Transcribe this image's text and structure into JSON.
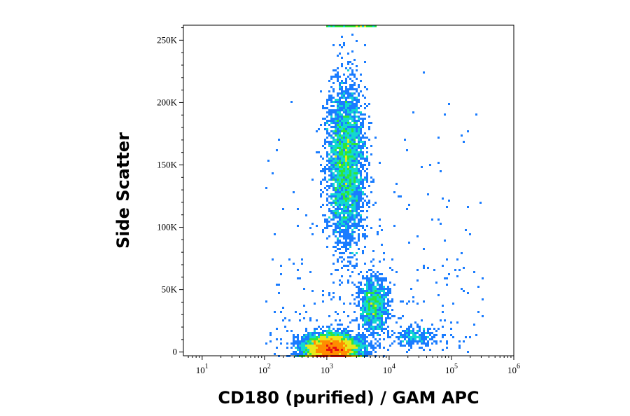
{
  "chart_data": {
    "type": "scatter",
    "subtype": "flow-cytometry-density-dot-plot",
    "xlabel": "CD180 (purified) / GAM APC",
    "ylabel": "Side Scatter",
    "x_scale": "log",
    "xlim": [
      5,
      1000000
    ],
    "ylim": [
      -3000,
      262000
    ],
    "x_ticks": [
      {
        "value": 10,
        "base": "10",
        "exp": "1"
      },
      {
        "value": 100,
        "base": "10",
        "exp": "2"
      },
      {
        "value": 1000,
        "base": "10",
        "exp": "3"
      },
      {
        "value": 10000,
        "base": "10",
        "exp": "4"
      },
      {
        "value": 100000,
        "base": "10",
        "exp": "5"
      },
      {
        "value": 1000000,
        "base": "10",
        "exp": "6"
      }
    ],
    "y_ticks": [
      {
        "value": 0,
        "label": "0"
      },
      {
        "value": 50000,
        "label": "50K"
      },
      {
        "value": 100000,
        "label": "100K"
      },
      {
        "value": 150000,
        "label": "150K"
      },
      {
        "value": 200000,
        "label": "200K"
      },
      {
        "value": 250000,
        "label": "250K"
      }
    ],
    "colormap": [
      "#0a10d8",
      "#1a7cff",
      "#12d8d0",
      "#2ee63a",
      "#e8e81a",
      "#ff8c00",
      "#e81010"
    ],
    "populations": [
      {
        "x_center": 1200,
        "x_spread_decades": 0.22,
        "y_center": 3000,
        "y_spread": 5500,
        "density": "very high"
      },
      {
        "x_center": 2000,
        "x_spread_decades": 0.15,
        "y_center": 150000,
        "y_spread": 32000,
        "density": "high"
      },
      {
        "x_center": 5500,
        "x_spread_decades": 0.12,
        "y_center": 38000,
        "y_spread": 12000,
        "density": "medium"
      },
      {
        "x_center": 25000,
        "x_spread_decades": 0.18,
        "y_center": 12000,
        "y_spread": 4000,
        "density": "low"
      }
    ],
    "grid": false,
    "legend": "none"
  }
}
